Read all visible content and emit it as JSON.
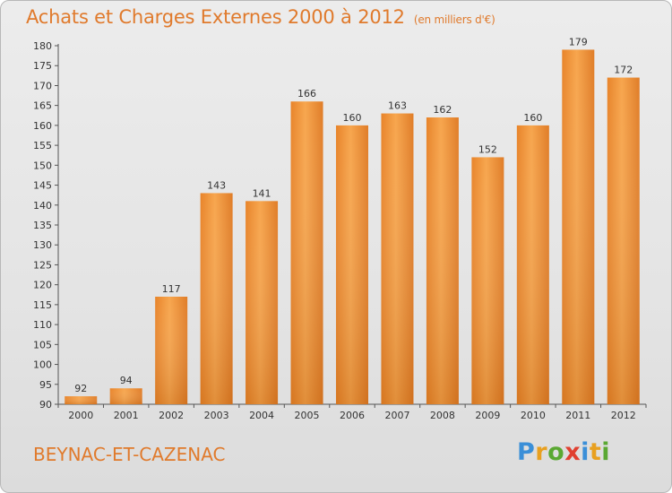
{
  "title": "Achats et Charges Externes 2000 à 2012",
  "title_unit": "(en milliers d'€)",
  "commune": "BEYNAC-ET-CAZENAC",
  "logo": {
    "text": "Proxiti",
    "letters": [
      {
        "ch": "P",
        "color": "#3a8fd8"
      },
      {
        "ch": "r",
        "color": "#e8a020"
      },
      {
        "ch": "o",
        "color": "#5aa832"
      },
      {
        "ch": "x",
        "color": "#e04030"
      },
      {
        "ch": "i",
        "color": "#3a8fd8"
      },
      {
        "ch": "t",
        "color": "#e8a020"
      },
      {
        "ch": "i",
        "color": "#5aa832"
      }
    ]
  },
  "colors": {
    "title": "#e07a2c",
    "bar_light": "#f7a64e",
    "bar_dark": "#d9731f",
    "axis": "#555555",
    "grid": "#cfcfcf"
  },
  "chart_data": {
    "type": "bar",
    "categories": [
      "2000",
      "2001",
      "2002",
      "2003",
      "2004",
      "2005",
      "2006",
      "2007",
      "2008",
      "2009",
      "2010",
      "2011",
      "2012"
    ],
    "values": [
      92,
      94,
      117,
      143,
      141,
      166,
      160,
      163,
      162,
      152,
      160,
      179,
      172
    ],
    "ylim": [
      90,
      180
    ],
    "yticks": [
      90,
      95,
      100,
      105,
      110,
      115,
      120,
      125,
      130,
      135,
      140,
      145,
      150,
      155,
      160,
      165,
      170,
      175,
      180
    ],
    "grid": false,
    "legend": "none",
    "xlabel": "",
    "ylabel": ""
  }
}
